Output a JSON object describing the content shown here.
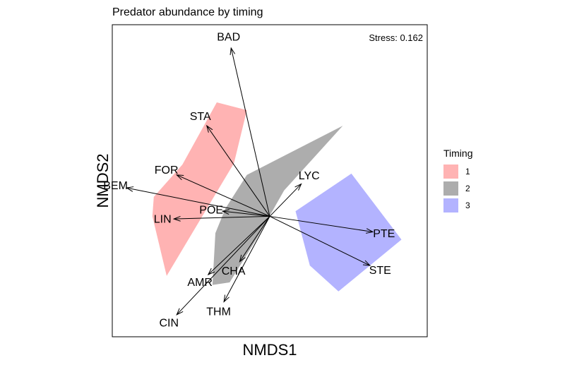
{
  "chart_data": {
    "type": "scatter",
    "title": "Predator abundance by timing",
    "xlabel": "NMDS1",
    "ylabel": "NMDS2",
    "annotation": "Stress: 0.162",
    "origin": [
      0,
      0
    ],
    "vectors": [
      {
        "label": "BAD",
        "x": -0.27,
        "y": 1.3
      },
      {
        "label": "STA",
        "x": -0.44,
        "y": 0.7
      },
      {
        "label": "FOR",
        "x": -0.65,
        "y": 0.32
      },
      {
        "label": "BEM",
        "x": -1.0,
        "y": 0.22
      },
      {
        "label": "POE",
        "x": -0.33,
        "y": 0.04
      },
      {
        "label": "LIN",
        "x": -0.67,
        "y": -0.02
      },
      {
        "label": "LYC",
        "x": 0.22,
        "y": 0.25
      },
      {
        "label": "PTE",
        "x": 0.72,
        "y": -0.12
      },
      {
        "label": "STE",
        "x": 0.7,
        "y": -0.38
      },
      {
        "label": "AMR",
        "x": -0.43,
        "y": -0.45
      },
      {
        "label": "CHA",
        "x": -0.21,
        "y": -0.35
      },
      {
        "label": "CIN",
        "x": -0.65,
        "y": -0.76
      },
      {
        "label": "THM",
        "x": -0.32,
        "y": -0.66
      }
    ],
    "hulls": [
      {
        "name": "1",
        "color": "#FFB3B3",
        "points": [
          [
            -0.72,
            -0.46
          ],
          [
            -0.82,
            0.0
          ],
          [
            -0.81,
            0.15
          ],
          [
            -0.61,
            0.4
          ],
          [
            -0.37,
            0.88
          ],
          [
            -0.16,
            0.82
          ],
          [
            -0.25,
            0.41
          ]
        ]
      },
      {
        "name": "2",
        "color": "#ADADAD",
        "points": [
          [
            -0.4,
            -0.53
          ],
          [
            -0.28,
            -0.51
          ],
          [
            -0.09,
            -0.17
          ],
          [
            0.1,
            0.2
          ],
          [
            0.51,
            0.7
          ],
          [
            -0.16,
            0.32
          ],
          [
            -0.31,
            0.06
          ],
          [
            -0.38,
            -0.13
          ]
        ]
      },
      {
        "name": "3",
        "color": "#B3B3FF",
        "points": [
          [
            0.48,
            -0.58
          ],
          [
            0.92,
            -0.18
          ],
          [
            0.57,
            0.33
          ],
          [
            0.18,
            0.04
          ],
          [
            0.28,
            -0.38
          ]
        ]
      }
    ],
    "xlim": [
      -1.1,
      1.1
    ],
    "ylim": [
      -0.93,
      1.48
    ],
    "grid": false,
    "legend": {
      "title": "Timing",
      "position": "right",
      "entries": [
        "1",
        "2",
        "3"
      ]
    }
  }
}
